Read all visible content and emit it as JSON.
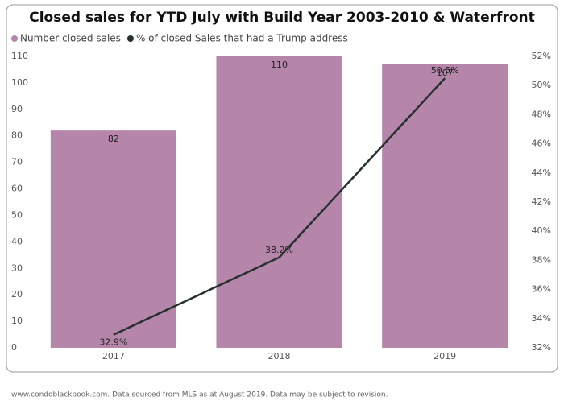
{
  "chart_data": {
    "type": "bar-line",
    "title": "Closed sales for YTD July with Build Year 2003-2010 & Waterfront",
    "categories": [
      "2017",
      "2018",
      "2019"
    ],
    "series": [
      {
        "name": "Number closed sales",
        "color": "#b586a9",
        "values": [
          82,
          110,
          107
        ]
      },
      {
        "name": "% of closed Sales that had a Trump address",
        "color": "#26302f",
        "axis": "y2",
        "values": [
          32.9,
          38.2,
          50.5
        ],
        "value_labels": [
          "32.9%",
          "38.2%",
          "50.5%"
        ]
      }
    ],
    "ylim": [
      0,
      110
    ],
    "yticks": [
      0,
      10,
      20,
      30,
      40,
      50,
      60,
      70,
      80,
      90,
      100,
      110
    ],
    "y2lim": [
      32,
      52
    ],
    "y2ticks": [
      {
        "value": 32,
        "label": "32%"
      },
      {
        "value": 34,
        "label": "34%"
      },
      {
        "value": 36,
        "label": "36%"
      },
      {
        "value": 38,
        "label": "38%"
      },
      {
        "value": 40,
        "label": "40%"
      },
      {
        "value": 42,
        "label": "42%"
      },
      {
        "value": 44,
        "label": "44%"
      },
      {
        "value": 46,
        "label": "46%"
      },
      {
        "value": 48,
        "label": "48%"
      },
      {
        "value": 50,
        "label": "50%"
      },
      {
        "value": 52,
        "label": "52%"
      }
    ],
    "footnote": "www.condoblackbook.com. Data sourced from MLS as at August 2019. Data may be subject to revision."
  }
}
